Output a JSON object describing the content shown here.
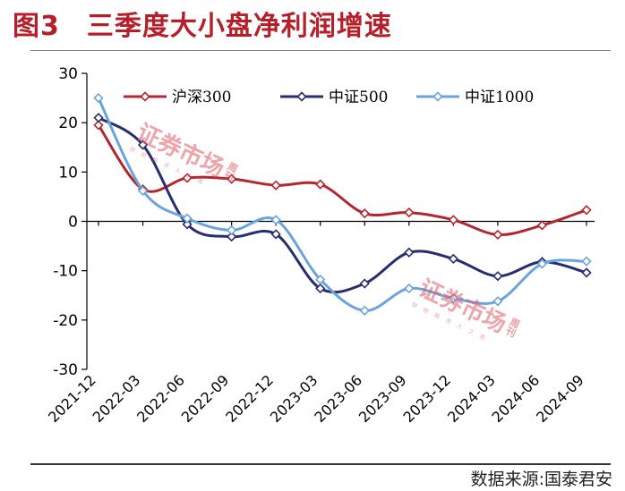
{
  "figure": {
    "number": "图3",
    "title": "三季度大小盘净利润增速",
    "source": "数据来源:国泰君安"
  },
  "watermark": {
    "text": "证券市场",
    "side": "周刊",
    "sub": "财 经 投 资 人 之 选"
  },
  "chart_data": {
    "type": "line",
    "title": "",
    "xlabel": "",
    "ylabel": "",
    "categories": [
      "2021-12",
      "2022-03",
      "2022-06",
      "2022-09",
      "2022-12",
      "2023-03",
      "2023-06",
      "2023-09",
      "2023-12",
      "2024-03",
      "2024-06",
      "2024-09"
    ],
    "ylim": [
      -30,
      30
    ],
    "yticks": [
      30,
      20,
      10,
      0,
      -10,
      -20,
      -30
    ],
    "legend_position": "top",
    "series": [
      {
        "name": "沪深300",
        "color": "#b4262f",
        "values": [
          19.5,
          6.5,
          8.8,
          8.6,
          7.3,
          7.5,
          1.6,
          1.8,
          0.3,
          -2.7,
          -0.8,
          2.3
        ]
      },
      {
        "name": "中证500",
        "color": "#272d6e",
        "values": [
          21,
          15.5,
          -0.6,
          -3.1,
          -2.6,
          -13.6,
          -12.6,
          -6.3,
          -7.6,
          -11.1,
          -8.2,
          -10.4
        ]
      },
      {
        "name": "中证1000",
        "color": "#6aa4dc",
        "values": [
          25,
          6.2,
          0.6,
          -1.8,
          0.3,
          -11.8,
          -18.1,
          -13.6,
          -15.6,
          -16.2,
          -8.6,
          -8.1
        ]
      }
    ]
  }
}
